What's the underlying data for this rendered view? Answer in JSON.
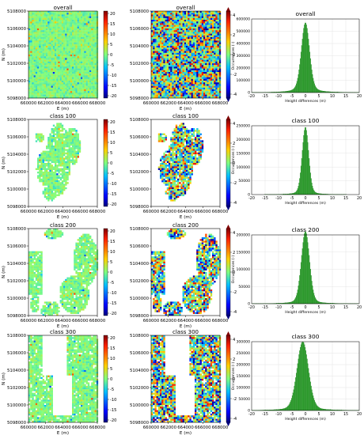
{
  "figure": {
    "rows": [
      {
        "label": "overall",
        "hist_ymax": 600000,
        "hist_yticks": [
          0,
          100000,
          200000,
          300000,
          400000,
          500000,
          600000
        ]
      },
      {
        "label": "class 100",
        "hist_ymax": 250000,
        "hist_yticks": [
          0,
          50000,
          100000,
          150000,
          200000,
          250000
        ]
      },
      {
        "label": "class 200",
        "hist_ymax": 200000,
        "hist_yticks": [
          0,
          50000,
          100000,
          150000,
          200000
        ]
      },
      {
        "label": "class 300",
        "hist_ymax": 300000,
        "hist_yticks": [
          0,
          50000,
          100000,
          150000,
          200000,
          250000,
          300000
        ]
      }
    ],
    "map_xlabel": "E (m)",
    "map_ylabel": "N (m)",
    "map_xticks": [
      660000,
      662000,
      664000,
      666000,
      668000
    ],
    "map_yticks": [
      5098000,
      5100000,
      5102000,
      5104000,
      5106000,
      5108000
    ],
    "cbar1_ticks": [
      20,
      15,
      10,
      5,
      0,
      -5,
      -10,
      -15,
      -20
    ],
    "cbar2_ticks": [
      4,
      2,
      0,
      -2,
      -4
    ],
    "hist_xlabel": "Height differences (m)",
    "hist_ylabel": "Occurrences (-)",
    "hist_xticks": [
      -20,
      -15,
      -10,
      -5,
      0,
      5,
      10,
      15,
      20
    ],
    "colors": {
      "hist_fill": "#2ca02c",
      "hist_edge": "#1f7a1f",
      "grid": "#dddddd"
    }
  },
  "chart_data": [
    {
      "type": "heatmap",
      "title": "overall",
      "xlabel": "E (m)",
      "ylabel": "N (m)",
      "xlim": [
        660000,
        668000
      ],
      "ylim": [
        5098000,
        5108000
      ],
      "colorbar_range": [
        -20,
        20
      ]
    },
    {
      "type": "heatmap",
      "title": "overall",
      "xlabel": "E (m)",
      "xlim": [
        660000,
        668000
      ],
      "ylim": [
        5098000,
        5108000
      ],
      "colorbar_range": [
        -4,
        4
      ]
    },
    {
      "type": "bar",
      "title": "overall",
      "xlabel": "Height differences (m)",
      "ylabel": "Occurrences (-)",
      "xlim": [
        -20,
        20
      ],
      "ylim": [
        0,
        600000
      ],
      "peak_x": 0,
      "peak_y": 570000
    },
    {
      "type": "heatmap",
      "title": "class 100",
      "xlabel": "E (m)",
      "ylabel": "N (m)",
      "xlim": [
        660000,
        668000
      ],
      "ylim": [
        5098000,
        5108000
      ],
      "colorbar_range": [
        -20,
        20
      ]
    },
    {
      "type": "heatmap",
      "title": "class 100",
      "xlabel": "E (m)",
      "xlim": [
        660000,
        668000
      ],
      "ylim": [
        5098000,
        5108000
      ],
      "colorbar_range": [
        -4,
        4
      ]
    },
    {
      "type": "bar",
      "title": "class 100",
      "xlabel": "Height differences (m)",
      "ylabel": "Occurrences (-)",
      "xlim": [
        -20,
        20
      ],
      "ylim": [
        0,
        250000
      ],
      "peak_x": 0,
      "peak_y": 245000
    },
    {
      "type": "heatmap",
      "title": "class 200",
      "xlabel": "E (m)",
      "ylabel": "N (m)",
      "xlim": [
        660000,
        668000
      ],
      "ylim": [
        5098000,
        5108000
      ],
      "colorbar_range": [
        -20,
        20
      ]
    },
    {
      "type": "heatmap",
      "title": "class 200",
      "xlabel": "E (m)",
      "xlim": [
        660000,
        668000
      ],
      "ylim": [
        5098000,
        5108000
      ],
      "colorbar_range": [
        -4,
        4
      ]
    },
    {
      "type": "bar",
      "title": "class 200",
      "xlabel": "Height differences (m)",
      "ylabel": "Occurrences (-)",
      "xlim": [
        -20,
        20
      ],
      "ylim": [
        0,
        200000
      ],
      "peak_x": 0,
      "peak_y": 210000
    },
    {
      "type": "heatmap",
      "title": "class 300",
      "xlabel": "E (m)",
      "ylabel": "N (m)",
      "xlim": [
        660000,
        668000
      ],
      "ylim": [
        5098000,
        5108000
      ],
      "colorbar_range": [
        -20,
        20
      ]
    },
    {
      "type": "heatmap",
      "title": "class 300",
      "xlabel": "E (m)",
      "xlim": [
        660000,
        668000
      ],
      "ylim": [
        5098000,
        5108000
      ],
      "colorbar_range": [
        -4,
        4
      ]
    },
    {
      "type": "bar",
      "title": "class 300",
      "xlabel": "Height differences (m)",
      "ylabel": "Occurrences (-)",
      "xlim": [
        -20,
        20
      ],
      "ylim": [
        0,
        300000
      ],
      "peak_x": -1,
      "peak_y": 300000
    }
  ]
}
